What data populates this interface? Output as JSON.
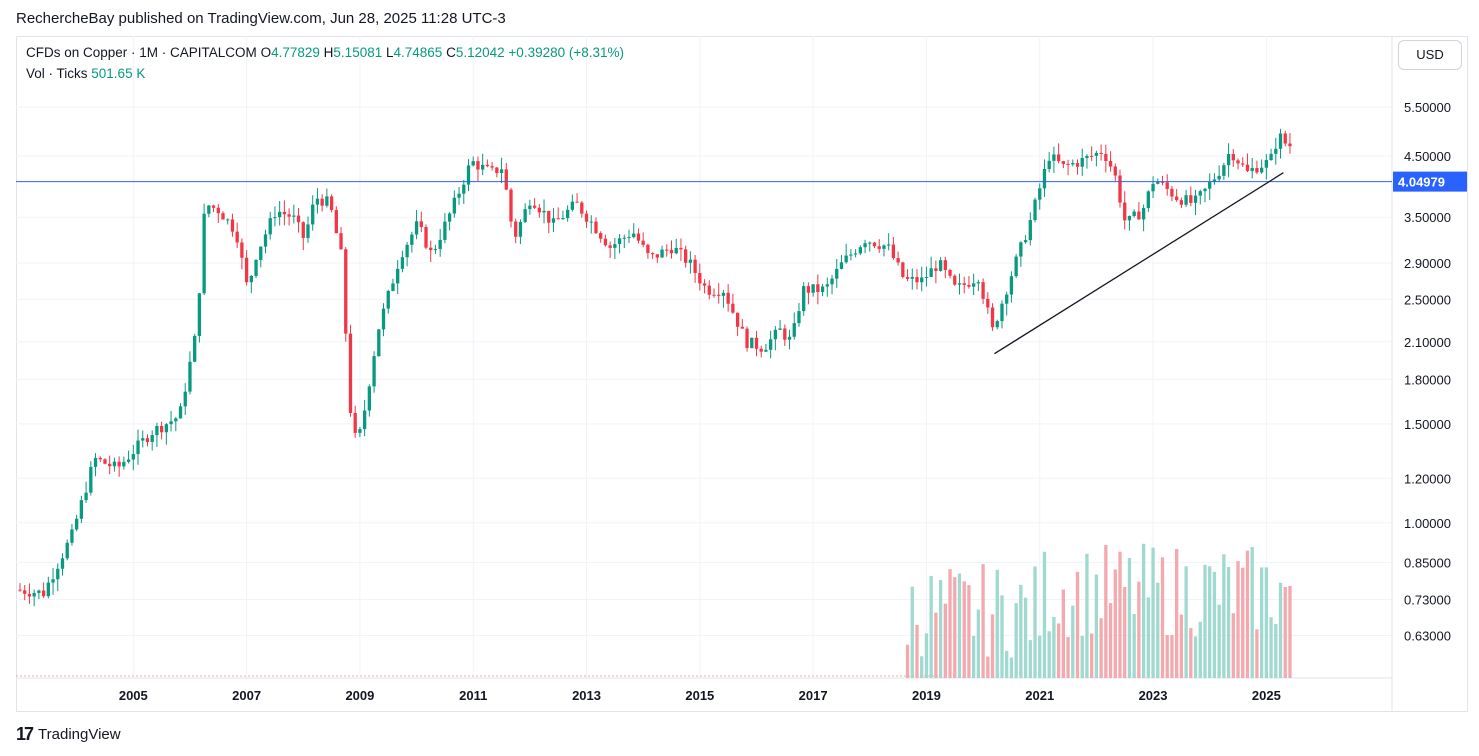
{
  "header": {
    "published_line": "RechercheBay published on TradingView.com, Jun 28, 2025 11:28 UTC-3"
  },
  "legend": {
    "symbol": "CFDs on Copper · 1M · CAPITALCOM",
    "o_label": "O",
    "o_value": "4.77829",
    "h_label": "H",
    "h_value": "5.15081",
    "l_label": "L",
    "l_value": "4.74865",
    "c_label": "C",
    "c_value": "5.12042",
    "change": "+0.39280 (+8.31%)",
    "vol_label": "Vol · Ticks",
    "vol_value": "501.65 K"
  },
  "currency_button": "USD",
  "footer": {
    "logo_glyph": "17",
    "brand": "TradingView"
  },
  "colors": {
    "up": "#089981",
    "down": "#f23645",
    "vol_up": "#9fd9cf",
    "vol_down": "#f3a9ad",
    "hline": "#2962ff",
    "trend": "#131722"
  },
  "chart_data": {
    "type": "candlestick",
    "interval": "1M",
    "y_scale": "log",
    "ylim": [
      0.58,
      5.8
    ],
    "xlim": [
      2003.0,
      2026.3
    ],
    "y_tick_labels": [
      "5.50000",
      "4.50000",
      "3.50000",
      "2.90000",
      "2.50000",
      "2.10000",
      "1.80000",
      "1.50000",
      "1.20000",
      "1.00000",
      "0.85000",
      "0.73000",
      "0.63000"
    ],
    "x_tick_labels": [
      "2005",
      "2007",
      "2009",
      "2011",
      "2013",
      "2015",
      "2017",
      "2019",
      "2021",
      "2023",
      "2025"
    ],
    "horizontal_line": {
      "price": 4.04979,
      "label": "4.04979"
    },
    "trendline": {
      "start": [
        2020.2,
        2.0
      ],
      "end": [
        2025.3,
        4.2
      ]
    },
    "price_anchors": [
      [
        2003.0,
        0.76
      ],
      [
        2003.5,
        0.75
      ],
      [
        2004.0,
        0.95
      ],
      [
        2004.4,
        1.3
      ],
      [
        2004.8,
        1.25
      ],
      [
        2005.4,
        1.45
      ],
      [
        2005.9,
        1.55
      ],
      [
        2006.2,
        2.2
      ],
      [
        2006.35,
        3.7
      ],
      [
        2006.6,
        3.6
      ],
      [
        2006.9,
        3.3
      ],
      [
        2007.1,
        2.6
      ],
      [
        2007.25,
        3.0
      ],
      [
        2007.6,
        3.6
      ],
      [
        2007.9,
        3.5
      ],
      [
        2008.1,
        3.2
      ],
      [
        2008.3,
        3.8
      ],
      [
        2008.55,
        3.7
      ],
      [
        2008.75,
        3.0
      ],
      [
        2008.95,
        1.4
      ],
      [
        2009.1,
        1.45
      ],
      [
        2009.4,
        2.2
      ],
      [
        2009.8,
        3.0
      ],
      [
        2010.1,
        3.4
      ],
      [
        2010.35,
        3.0
      ],
      [
        2010.7,
        3.6
      ],
      [
        2011.05,
        4.4
      ],
      [
        2011.4,
        4.2
      ],
      [
        2011.6,
        4.3
      ],
      [
        2011.8,
        3.2
      ],
      [
        2012.1,
        3.8
      ],
      [
        2012.5,
        3.4
      ],
      [
        2012.9,
        3.7
      ],
      [
        2013.2,
        3.4
      ],
      [
        2013.5,
        3.1
      ],
      [
        2013.9,
        3.3
      ],
      [
        2014.2,
        2.95
      ],
      [
        2014.6,
        3.1
      ],
      [
        2014.9,
        2.9
      ],
      [
        2015.2,
        2.6
      ],
      [
        2015.5,
        2.6
      ],
      [
        2015.9,
        2.1
      ],
      [
        2016.2,
        2.05
      ],
      [
        2016.5,
        2.2
      ],
      [
        2016.7,
        2.1
      ],
      [
        2016.9,
        2.6
      ],
      [
        2017.3,
        2.6
      ],
      [
        2017.6,
        2.9
      ],
      [
        2018.0,
        3.2
      ],
      [
        2018.4,
        3.1
      ],
      [
        2018.7,
        2.7
      ],
      [
        2019.0,
        2.7
      ],
      [
        2019.3,
        2.9
      ],
      [
        2019.6,
        2.6
      ],
      [
        2020.0,
        2.75
      ],
      [
        2020.25,
        2.2
      ],
      [
        2020.6,
        2.8
      ],
      [
        2020.9,
        3.4
      ],
      [
        2021.25,
        4.5
      ],
      [
        2021.5,
        4.3
      ],
      [
        2021.8,
        4.4
      ],
      [
        2022.2,
        4.6
      ],
      [
        2022.4,
        4.2
      ],
      [
        2022.6,
        3.4
      ],
      [
        2022.9,
        3.6
      ],
      [
        2023.1,
        4.1
      ],
      [
        2023.5,
        3.8
      ],
      [
        2023.8,
        3.7
      ],
      [
        2024.0,
        3.9
      ],
      [
        2024.3,
        4.3
      ],
      [
        2024.45,
        4.6
      ],
      [
        2024.75,
        4.2
      ],
      [
        2024.9,
        4.3
      ],
      [
        2025.15,
        4.4
      ],
      [
        2025.3,
        4.9
      ],
      [
        2025.45,
        4.7
      ]
    ]
  }
}
